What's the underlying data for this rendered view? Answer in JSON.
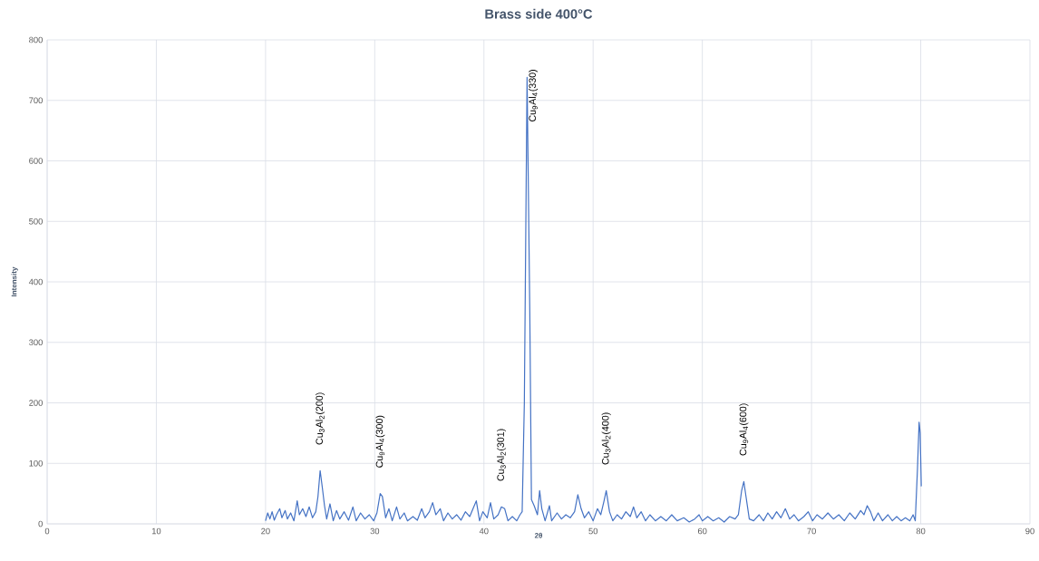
{
  "chart_data": {
    "type": "line",
    "title": "Brass side 400°C",
    "xlabel": "2θ",
    "ylabel": "Intensity",
    "x": [
      20.0,
      20.2,
      20.4,
      20.6,
      20.8,
      21.0,
      21.3,
      21.5,
      21.8,
      22.0,
      22.3,
      22.6,
      22.9,
      23.1,
      23.4,
      23.7,
      24.0,
      24.3,
      24.6,
      24.8,
      25.0,
      25.2,
      25.4,
      25.6,
      25.9,
      26.2,
      26.5,
      26.8,
      27.2,
      27.6,
      28.0,
      28.3,
      28.7,
      29.1,
      29.5,
      29.9,
      30.2,
      30.5,
      30.7,
      31.0,
      31.3,
      31.6,
      32.0,
      32.3,
      32.7,
      33.0,
      33.5,
      33.9,
      34.3,
      34.6,
      35.0,
      35.3,
      35.6,
      36.0,
      36.3,
      36.7,
      37.1,
      37.5,
      37.9,
      38.3,
      38.7,
      39.0,
      39.3,
      39.6,
      39.9,
      40.3,
      40.6,
      40.9,
      41.3,
      41.6,
      41.9,
      42.2,
      42.6,
      43.0,
      43.3,
      43.5,
      43.7,
      43.95,
      44.2,
      44.35,
      44.6,
      44.9,
      45.1,
      45.3,
      45.6,
      46.0,
      46.2,
      46.7,
      47.1,
      47.5,
      47.9,
      48.3,
      48.6,
      48.9,
      49.2,
      49.6,
      50.0,
      50.4,
      50.7,
      51.0,
      51.2,
      51.5,
      51.8,
      52.2,
      52.6,
      53.0,
      53.4,
      53.7,
      54.0,
      54.4,
      54.8,
      55.2,
      55.7,
      56.2,
      56.7,
      57.2,
      57.7,
      58.3,
      58.8,
      59.3,
      59.7,
      60.0,
      60.5,
      61.0,
      61.5,
      62.0,
      62.5,
      63.0,
      63.3,
      63.6,
      63.8,
      64.0,
      64.3,
      64.7,
      65.2,
      65.6,
      66.0,
      66.4,
      66.8,
      67.2,
      67.6,
      68.0,
      68.4,
      68.8,
      69.3,
      69.7,
      70.1,
      70.5,
      71.0,
      71.5,
      72.0,
      72.5,
      73.0,
      73.5,
      74.0,
      74.5,
      74.8,
      75.1,
      75.4,
      75.7,
      76.1,
      76.5,
      77.0,
      77.4,
      77.8,
      78.2,
      78.6,
      79.0,
      79.3,
      79.5,
      79.7,
      79.85,
      79.95,
      80.05
    ],
    "series": [
      {
        "color": "#4472c4",
        "values": [
          5,
          18,
          8,
          20,
          6,
          15,
          25,
          10,
          22,
          8,
          18,
          5,
          38,
          15,
          25,
          12,
          28,
          10,
          20,
          45,
          88,
          60,
          30,
          8,
          33,
          5,
          22,
          8,
          20,
          6,
          28,
          5,
          18,
          8,
          15,
          5,
          18,
          50,
          45,
          10,
          25,
          5,
          28,
          8,
          18,
          5,
          12,
          6,
          25,
          10,
          20,
          35,
          15,
          25,
          5,
          18,
          8,
          15,
          6,
          20,
          12,
          25,
          38,
          5,
          20,
          10,
          35,
          8,
          15,
          28,
          25,
          5,
          12,
          5,
          15,
          20,
          200,
          738,
          350,
          40,
          30,
          15,
          55,
          25,
          5,
          30,
          5,
          18,
          8,
          15,
          10,
          20,
          48,
          25,
          10,
          20,
          5,
          25,
          15,
          38,
          55,
          20,
          5,
          15,
          8,
          20,
          12,
          28,
          10,
          20,
          5,
          15,
          5,
          12,
          5,
          15,
          5,
          10,
          3,
          8,
          15,
          5,
          12,
          5,
          10,
          3,
          12,
          8,
          15,
          55,
          70,
          45,
          8,
          5,
          15,
          5,
          18,
          8,
          20,
          10,
          25,
          8,
          15,
          5,
          12,
          20,
          5,
          15,
          8,
          18,
          8,
          15,
          5,
          18,
          8,
          22,
          15,
          30,
          20,
          5,
          18,
          5,
          15,
          5,
          12,
          5,
          10,
          5,
          15,
          5,
          90,
          168,
          150,
          62
        ]
      }
    ],
    "xlim": [
      0,
      90
    ],
    "xticks": [
      0,
      10,
      20,
      30,
      40,
      50,
      60,
      70,
      80,
      90
    ],
    "ylim": [
      0,
      800
    ],
    "yticks": [
      0,
      100,
      200,
      300,
      400,
      500,
      600,
      700,
      800
    ],
    "grid": true,
    "marker": "none",
    "line_style": "solid",
    "annotations": [
      {
        "text": "Cu$_{3}$Al$_{2}$(200)",
        "x": 25.0,
        "y": 88
      },
      {
        "text": "Cu$_{9}$Al$_{4}$(300)",
        "x": 30.5,
        "y": 50
      },
      {
        "text": "Cu$_{3}$Al$_{2}$(301)",
        "x": 41.6,
        "y": 28
      },
      {
        "text": "Cu$_{9}$Al$_{4}$(330)",
        "x": 43.95,
        "y": 738
      },
      {
        "text": "Cu$_{3}$Al$_{2}$(400)",
        "x": 51.2,
        "y": 55
      },
      {
        "text": "Cu$_{9}$Al$_{4}$(600)",
        "x": 63.8,
        "y": 70
      }
    ]
  }
}
